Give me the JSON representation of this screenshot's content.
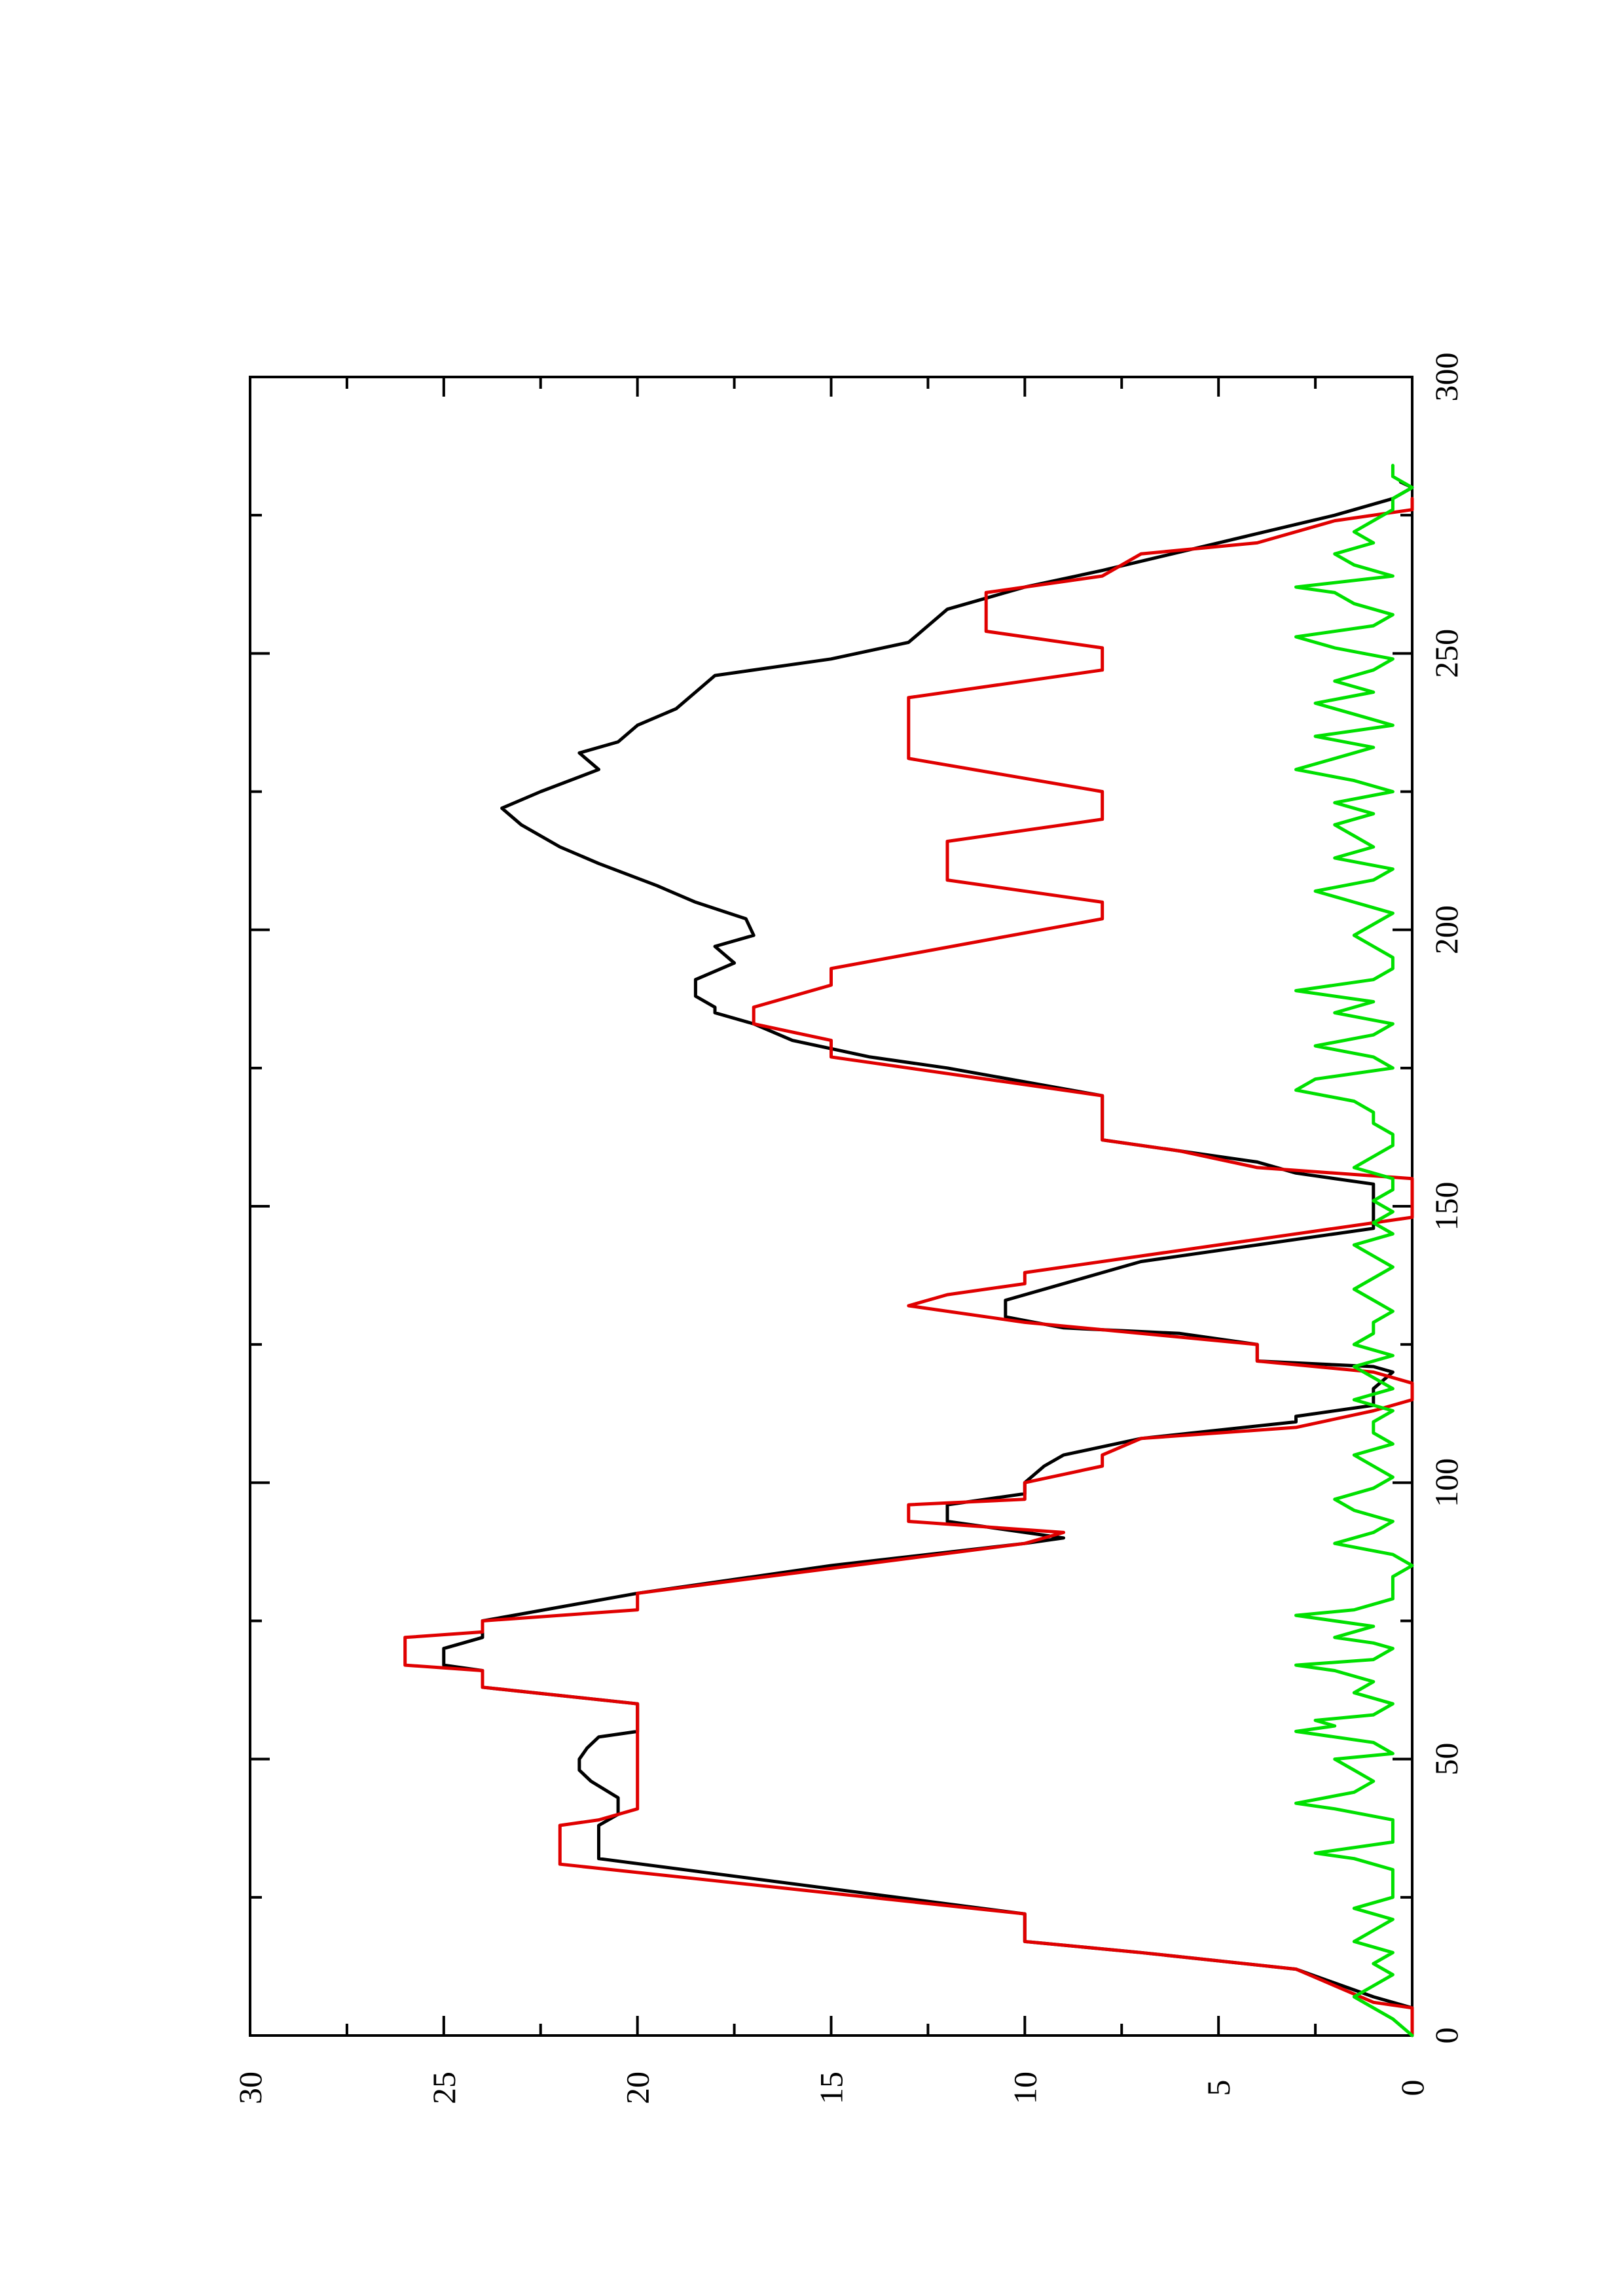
{
  "chart_data": {
    "type": "line",
    "orientation": "rotated-90-counterclockwise",
    "xlim": [
      0,
      300
    ],
    "ylim": [
      0,
      30
    ],
    "xticks": [
      "0",
      "50",
      "100",
      "150",
      "200",
      "250",
      "300"
    ],
    "yticks": [
      "0",
      "5",
      "10",
      "15",
      "20",
      "25",
      "30"
    ],
    "grid": false,
    "legend": "none",
    "series": [
      {
        "color": "#000000",
        "points": [
          [
            0,
            0
          ],
          [
            5,
            0
          ],
          [
            7,
            1
          ],
          [
            12,
            3
          ],
          [
            15,
            7
          ],
          [
            17,
            10
          ],
          [
            20,
            10
          ],
          [
            22,
            10
          ],
          [
            32,
            21
          ],
          [
            35,
            21
          ],
          [
            38,
            21
          ],
          [
            40,
            20.5
          ],
          [
            43,
            20.5
          ],
          [
            46,
            21.2
          ],
          [
            48,
            21.5
          ],
          [
            50,
            21.5
          ],
          [
            52,
            21.3
          ],
          [
            54,
            21
          ],
          [
            55,
            20
          ],
          [
            58,
            20
          ],
          [
            60,
            20
          ],
          [
            63,
            24
          ],
          [
            66,
            24
          ],
          [
            67,
            25
          ],
          [
            70,
            25
          ],
          [
            72,
            24
          ],
          [
            75,
            24
          ],
          [
            80,
            20
          ],
          [
            85,
            15
          ],
          [
            89,
            10
          ],
          [
            90,
            9
          ],
          [
            92,
            11
          ],
          [
            93,
            12
          ],
          [
            96,
            12
          ],
          [
            98,
            10
          ],
          [
            100,
            10
          ],
          [
            103,
            9.5
          ],
          [
            105,
            9
          ],
          [
            108,
            7
          ],
          [
            111,
            3
          ],
          [
            112,
            3
          ],
          [
            114,
            1
          ],
          [
            117,
            1
          ],
          [
            120,
            0.5
          ],
          [
            121,
            1
          ],
          [
            122,
            4
          ],
          [
            125,
            4
          ],
          [
            127,
            6
          ],
          [
            128,
            9
          ],
          [
            130,
            10.5
          ],
          [
            133,
            10.5
          ],
          [
            136,
            9
          ],
          [
            138,
            8
          ],
          [
            140,
            7
          ],
          [
            143,
            4
          ],
          [
            146,
            1
          ],
          [
            148,
            1
          ],
          [
            150,
            1
          ],
          [
            152,
            1
          ],
          [
            154,
            1
          ],
          [
            156,
            3
          ],
          [
            158,
            4
          ],
          [
            160,
            6
          ],
          [
            162,
            8
          ],
          [
            166,
            8
          ],
          [
            170,
            8
          ],
          [
            175,
            12
          ],
          [
            177,
            14
          ],
          [
            180,
            16
          ],
          [
            183,
            17
          ],
          [
            185,
            18
          ],
          [
            186,
            18
          ],
          [
            188,
            18.5
          ],
          [
            191,
            18.5
          ],
          [
            194,
            17.5
          ],
          [
            197,
            18
          ],
          [
            199,
            17
          ],
          [
            202,
            17.2
          ],
          [
            205,
            18.5
          ],
          [
            208,
            19.5
          ],
          [
            212,
            21
          ],
          [
            215,
            22
          ],
          [
            219,
            23
          ],
          [
            222,
            23.5
          ],
          [
            225,
            22.5
          ],
          [
            229,
            21
          ],
          [
            232,
            21.5
          ],
          [
            234,
            20.5
          ],
          [
            237,
            20
          ],
          [
            240,
            19
          ],
          [
            243,
            18.5
          ],
          [
            246,
            18
          ],
          [
            249,
            15
          ],
          [
            252,
            13
          ],
          [
            255,
            12.5
          ],
          [
            258,
            12
          ],
          [
            262,
            10
          ],
          [
            265,
            8
          ],
          [
            270,
            5
          ],
          [
            275,
            2
          ],
          [
            278,
            0.5
          ],
          [
            280,
            0
          ],
          [
            281,
            0.3
          ]
        ]
      },
      {
        "color": "#e00000",
        "points": [
          [
            0,
            0
          ],
          [
            5,
            0
          ],
          [
            6,
            1
          ],
          [
            12,
            3
          ],
          [
            15,
            7
          ],
          [
            17,
            10
          ],
          [
            20,
            10
          ],
          [
            22,
            10
          ],
          [
            31,
            22
          ],
          [
            35,
            22
          ],
          [
            38,
            22
          ],
          [
            39,
            21
          ],
          [
            41,
            20
          ],
          [
            44,
            20
          ],
          [
            46,
            20
          ],
          [
            60,
            20
          ],
          [
            63,
            24
          ],
          [
            66,
            24
          ],
          [
            67,
            26
          ],
          [
            72,
            26
          ],
          [
            73,
            24
          ],
          [
            75,
            24
          ],
          [
            77,
            20
          ],
          [
            80,
            20
          ],
          [
            89,
            10
          ],
          [
            91,
            9
          ],
          [
            93,
            13
          ],
          [
            96,
            13
          ],
          [
            97,
            10
          ],
          [
            100,
            10
          ],
          [
            103,
            8
          ],
          [
            105,
            8
          ],
          [
            108,
            7
          ],
          [
            110,
            3
          ],
          [
            113,
            1
          ],
          [
            115,
            0
          ],
          [
            116,
            0
          ],
          [
            117,
            0
          ],
          [
            118,
            0
          ],
          [
            120,
            1
          ],
          [
            122,
            4
          ],
          [
            125,
            4
          ],
          [
            129,
            10
          ],
          [
            132,
            13
          ],
          [
            134,
            12
          ],
          [
            136,
            10
          ],
          [
            138,
            10
          ],
          [
            141,
            7
          ],
          [
            145,
            3
          ],
          [
            148,
            0
          ],
          [
            155,
            0
          ],
          [
            157,
            4
          ],
          [
            160,
            6
          ],
          [
            162,
            8
          ],
          [
            170,
            8
          ],
          [
            177,
            15
          ],
          [
            180,
            15
          ],
          [
            183,
            17
          ],
          [
            186,
            17
          ],
          [
            190,
            15
          ],
          [
            193,
            15
          ],
          [
            202,
            8
          ],
          [
            205,
            8
          ],
          [
            209,
            12
          ],
          [
            211,
            12
          ],
          [
            216,
            12
          ],
          [
            220,
            8
          ],
          [
            222,
            8
          ],
          [
            225,
            8
          ],
          [
            231,
            13
          ],
          [
            233,
            13
          ],
          [
            240,
            13
          ],
          [
            242,
            13
          ],
          [
            247,
            8
          ],
          [
            250,
            8
          ],
          [
            251,
            8
          ],
          [
            254,
            11
          ],
          [
            258,
            11
          ],
          [
            261,
            11
          ],
          [
            264,
            8
          ],
          [
            268,
            7
          ],
          [
            270,
            4
          ],
          [
            274,
            2
          ],
          [
            276,
            0
          ],
          [
            278,
            0
          ]
        ]
      },
      {
        "color": "#00e000",
        "points": [
          [
            0,
            0
          ],
          [
            3,
            0.5
          ],
          [
            5,
            1
          ],
          [
            7,
            1.5
          ],
          [
            9,
            1
          ],
          [
            11,
            0.5
          ],
          [
            13,
            1
          ],
          [
            15,
            0.5
          ],
          [
            17,
            1.5
          ],
          [
            19,
            1
          ],
          [
            21,
            0.5
          ],
          [
            23,
            1.5
          ],
          [
            25,
            0.5
          ],
          [
            27,
            0.5
          ],
          [
            30,
            0.5
          ],
          [
            32,
            1.5
          ],
          [
            33,
            2.5
          ],
          [
            35,
            0.5
          ],
          [
            37,
            0.5
          ],
          [
            39,
            0.5
          ],
          [
            41,
            2
          ],
          [
            42,
            3
          ],
          [
            44,
            1.5
          ],
          [
            46,
            1
          ],
          [
            48,
            1.5
          ],
          [
            50,
            2
          ],
          [
            51,
            0.5
          ],
          [
            53,
            1
          ],
          [
            55,
            3
          ],
          [
            56,
            2
          ],
          [
            57,
            2.5
          ],
          [
            58,
            1
          ],
          [
            60,
            0.5
          ],
          [
            62,
            1.5
          ],
          [
            64,
            1
          ],
          [
            66,
            2
          ],
          [
            67,
            3
          ],
          [
            68,
            1
          ],
          [
            70,
            0.5
          ],
          [
            71,
            1
          ],
          [
            72,
            2
          ],
          [
            74,
            1
          ],
          [
            76,
            3
          ],
          [
            77,
            1.5
          ],
          [
            79,
            0.5
          ],
          [
            81,
            0.5
          ],
          [
            83,
            0.5
          ],
          [
            85,
            0
          ],
          [
            87,
            0.5
          ],
          [
            89,
            2
          ],
          [
            91,
            1
          ],
          [
            93,
            0.5
          ],
          [
            95,
            1.5
          ],
          [
            97,
            2
          ],
          [
            99,
            1
          ],
          [
            101,
            0.5
          ],
          [
            103,
            1
          ],
          [
            105,
            1.5
          ],
          [
            107,
            0.5
          ],
          [
            109,
            1
          ],
          [
            111,
            1
          ],
          [
            113,
            0.5
          ],
          [
            115,
            1.5
          ],
          [
            117,
            0.5
          ],
          [
            119,
            1
          ],
          [
            121,
            1.5
          ],
          [
            123,
            0.5
          ],
          [
            125,
            1.5
          ],
          [
            127,
            1
          ],
          [
            129,
            1
          ],
          [
            131,
            0.5
          ],
          [
            133,
            1
          ],
          [
            135,
            1.5
          ],
          [
            137,
            1
          ],
          [
            139,
            0.5
          ],
          [
            141,
            1
          ],
          [
            143,
            1.5
          ],
          [
            145,
            0.5
          ],
          [
            147,
            1
          ],
          [
            149,
            0.5
          ],
          [
            151,
            1
          ],
          [
            153,
            0.5
          ],
          [
            155,
            0.5
          ],
          [
            157,
            1.5
          ],
          [
            159,
            1
          ],
          [
            161,
            0.5
          ],
          [
            163,
            0.5
          ],
          [
            165,
            1
          ],
          [
            167,
            1
          ],
          [
            169,
            1.5
          ],
          [
            171,
            3
          ],
          [
            173,
            2.5
          ],
          [
            175,
            0.5
          ],
          [
            177,
            1
          ],
          [
            179,
            2.5
          ],
          [
            181,
            1
          ],
          [
            183,
            0.5
          ],
          [
            185,
            2
          ],
          [
            187,
            1
          ],
          [
            189,
            3
          ],
          [
            191,
            1
          ],
          [
            193,
            0.5
          ],
          [
            195,
            0.5
          ],
          [
            197,
            1
          ],
          [
            199,
            1.5
          ],
          [
            201,
            1
          ],
          [
            203,
            0.5
          ],
          [
            205,
            1.5
          ],
          [
            207,
            2.5
          ],
          [
            209,
            1
          ],
          [
            211,
            0.5
          ],
          [
            213,
            2
          ],
          [
            215,
            1
          ],
          [
            217,
            1.5
          ],
          [
            219,
            2
          ],
          [
            221,
            1
          ],
          [
            223,
            2
          ],
          [
            225,
            0.5
          ],
          [
            227,
            1.5
          ],
          [
            229,
            3
          ],
          [
            231,
            2
          ],
          [
            233,
            1
          ],
          [
            235,
            2.5
          ],
          [
            237,
            0.5
          ],
          [
            239,
            1.5
          ],
          [
            241,
            2.5
          ],
          [
            243,
            1
          ],
          [
            245,
            2
          ],
          [
            247,
            1
          ],
          [
            249,
            0.5
          ],
          [
            251,
            2
          ],
          [
            253,
            3
          ],
          [
            255,
            1
          ],
          [
            257,
            0.5
          ],
          [
            259,
            1.5
          ],
          [
            261,
            2
          ],
          [
            262,
            3
          ],
          [
            264,
            0.5
          ],
          [
            266,
            1.5
          ],
          [
            268,
            2
          ],
          [
            270,
            1
          ],
          [
            272,
            1.5
          ],
          [
            274,
            1
          ],
          [
            276,
            0.5
          ],
          [
            278,
            0.5
          ],
          [
            280,
            0
          ],
          [
            282,
            0.5
          ],
          [
            284,
            0.5
          ]
        ]
      }
    ]
  }
}
